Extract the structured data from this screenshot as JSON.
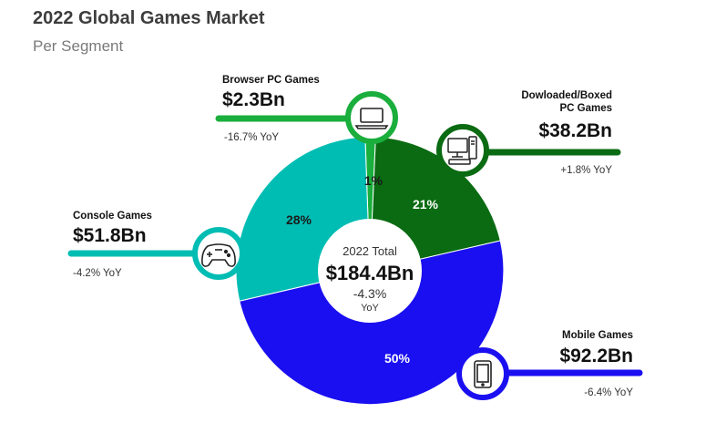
{
  "header": {
    "title": "2022 Global Games Market",
    "subtitle": "Per Segment"
  },
  "center": {
    "label": "2022 Total",
    "total": "$184.4Bn",
    "change": "-4.3%",
    "yoy": "YoY"
  },
  "colors": {
    "browser": "#1aae3c",
    "boxed": "#0a6b12",
    "mobile": "#1a0ff0",
    "console": "#00bdb3"
  },
  "chart_data": {
    "type": "pie",
    "title": "2022 Global Games Market",
    "subtitle": "Per Segment",
    "total": "$184.4Bn",
    "total_change": "-4.3% YoY",
    "units": "Bn USD",
    "slices": [
      {
        "name": "Browser PC Games",
        "value": 2.3,
        "percent": 1,
        "percent_label": "1%",
        "value_label": "$2.3Bn",
        "yoy": "-16.7% YoY",
        "color": "#1aae3c",
        "icon": "laptop-icon"
      },
      {
        "name": "Dowloaded/Boxed PC Games",
        "value": 38.2,
        "percent": 21,
        "percent_label": "21%",
        "value_label": "$38.2Bn",
        "yoy": "+1.8% YoY",
        "color": "#0a6b12",
        "icon": "desktop-computer-icon"
      },
      {
        "name": "Mobile Games",
        "value": 92.2,
        "percent": 50,
        "percent_label": "50%",
        "value_label": "$92.2Bn",
        "yoy": "-6.4% YoY",
        "color": "#1a0ff0",
        "icon": "smartphone-icon"
      },
      {
        "name": "Console Games",
        "value": 51.8,
        "percent": 28,
        "percent_label": "28%",
        "value_label": "$51.8Bn",
        "yoy": "-4.2% YoY",
        "color": "#00bdb3",
        "icon": "gamepad-icon"
      }
    ]
  }
}
